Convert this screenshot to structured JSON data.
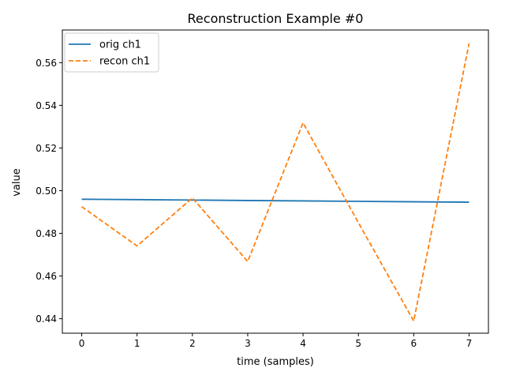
{
  "chart_data": {
    "type": "line",
    "title": "Reconstruction Example #0",
    "xlabel": "time (samples)",
    "ylabel": "value",
    "x": [
      0,
      1,
      2,
      3,
      4,
      5,
      6,
      7
    ],
    "xlim": [
      -0.35,
      7.35
    ],
    "ylim": [
      0.4332,
      0.5753
    ],
    "xticks": [
      0,
      1,
      2,
      3,
      4,
      5,
      6,
      7
    ],
    "yticks": [
      0.44,
      0.46,
      0.48,
      0.5,
      0.52,
      0.54,
      0.56
    ],
    "ytick_labels": [
      "0.44",
      "0.46",
      "0.48",
      "0.50",
      "0.52",
      "0.54",
      "0.56"
    ],
    "grid": false,
    "legend_position": "upper-left",
    "series": [
      {
        "name": "orig ch1",
        "color": "#1f77b4",
        "style": "solid",
        "values": [
          0.496,
          0.4958,
          0.4956,
          0.4954,
          0.4952,
          0.495,
          0.4948,
          0.4946
        ]
      },
      {
        "name": "recon ch1",
        "color": "#ff7f0e",
        "style": "dashed",
        "values": [
          0.4925,
          0.4741,
          0.4966,
          0.4668,
          0.5318,
          0.485,
          0.4389,
          0.569
        ]
      }
    ]
  }
}
